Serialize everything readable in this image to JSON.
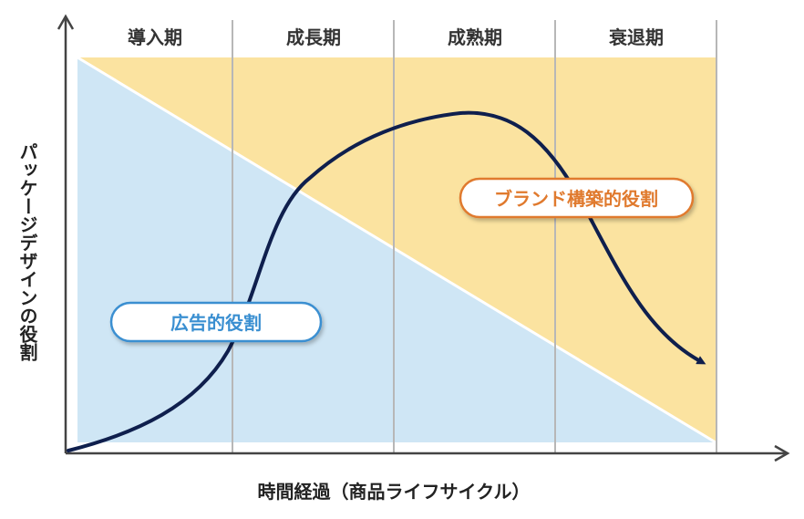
{
  "phases": [
    {
      "label": "導入期"
    },
    {
      "label": "成長期"
    },
    {
      "label": "成熟期"
    },
    {
      "label": "衰退期"
    }
  ],
  "axes": {
    "x_title": "時間経過（商品ライフサイクル）",
    "y_title": "パッケージデザインの役割"
  },
  "regions": {
    "advertising": {
      "label": "広告的役割",
      "color": "#cfe6f5",
      "accent": "#3a8fd1"
    },
    "branding": {
      "label": "ブランド構築的役割",
      "color": "#fbe3a0",
      "accent": "#e07a2e"
    }
  },
  "colors": {
    "curve": "#0f1f4d",
    "axis": "#444444",
    "divider": "#b7b7b7"
  }
}
